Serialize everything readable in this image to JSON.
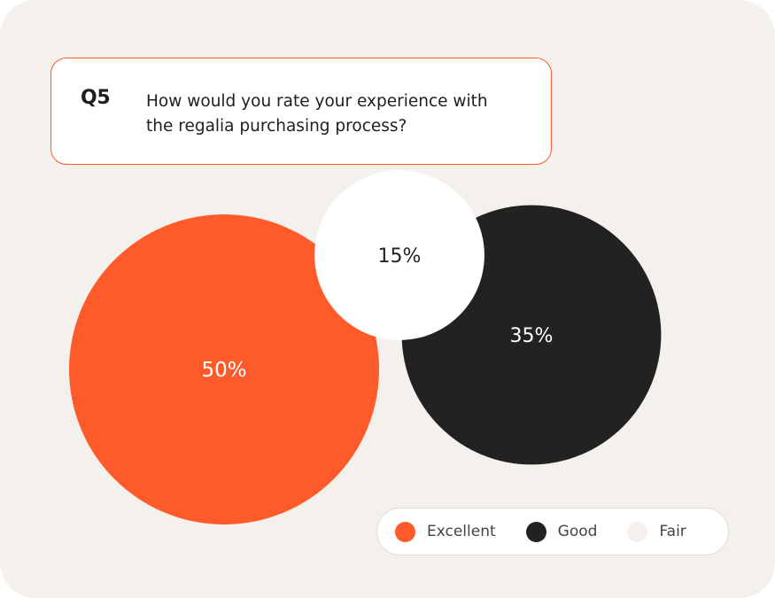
{
  "question": {
    "number": "Q5",
    "text": "How would you rate your experience with the regalia purchasing process?"
  },
  "chart_data": {
    "type": "bubble",
    "title": "",
    "series": [
      {
        "name": "Excellent",
        "value": 50,
        "label": "50%",
        "color": "#ff5a29",
        "text_color": "#ffffff"
      },
      {
        "name": "Good",
        "value": 35,
        "label": "35%",
        "color": "#222222",
        "text_color": "#ffffff"
      },
      {
        "name": "Fair",
        "value": 15,
        "label": "15%",
        "color": "#ffffff",
        "text_color": "#222222"
      }
    ],
    "legend_position": "bottom-right"
  },
  "legend": {
    "items": [
      {
        "label": "Excellent",
        "color": "#ff5a29"
      },
      {
        "label": "Good",
        "color": "#222222"
      },
      {
        "label": "Fair",
        "color": "#f4f1ec"
      }
    ]
  }
}
